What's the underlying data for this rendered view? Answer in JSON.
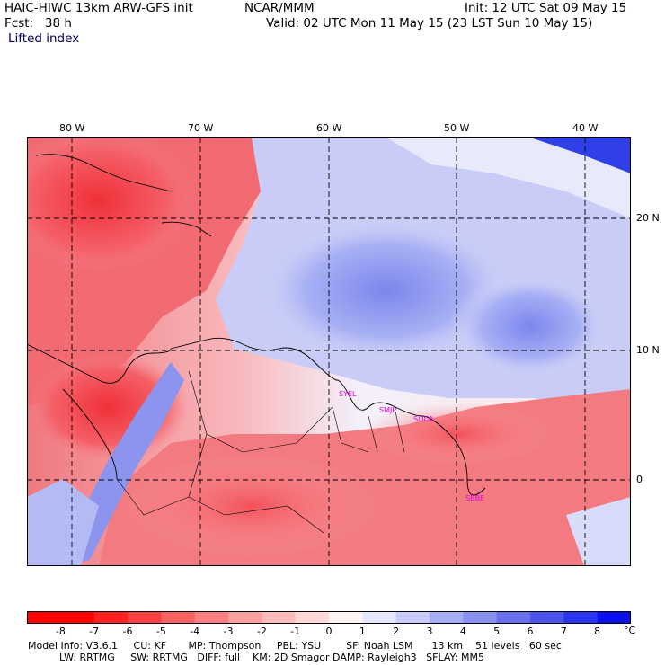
{
  "header": {
    "model": "HAIC-HIWC 13km ARW-GFS init",
    "org": "NCAR/MMM",
    "fcst": "Fcst:   38 h",
    "init": "Init: 12 UTC Sat 09 May 15",
    "valid": "Valid: 02 UTC Mon 11 May 15 (23 LST Sun 10 May 15)",
    "field": "Lifted index"
  },
  "map": {
    "lon_labels": [
      "80 W",
      "70 W",
      "60 W",
      "50 W",
      "40 W"
    ],
    "lat_labels": [
      "20 N",
      "10 N",
      "0"
    ],
    "stations": [
      "SYEL",
      "SMJP",
      "SOCA",
      "SBBE"
    ],
    "colors": {
      "unstable": "#e8202a",
      "stable": "#2030e0",
      "neutral": "#ffffff"
    }
  },
  "colorbar": {
    "ticks": [
      "-8",
      "-7",
      "-6",
      "-5",
      "-4",
      "-3",
      "-2",
      "-1",
      "0",
      "1",
      "2",
      "3",
      "4",
      "5",
      "6",
      "7",
      "8"
    ],
    "unit": "°C",
    "colors": [
      "#ff0000",
      "#ff2020",
      "#ff4040",
      "#ff6262",
      "#ff8080",
      "#ffa0a0",
      "#ffbcbc",
      "#ffd8d8",
      "#fff4f4",
      "#e6e8ff",
      "#c8ccff",
      "#a8aef5",
      "#8890f0",
      "#6870f0",
      "#4c54f0",
      "#2a34f0",
      "#0c10f0"
    ]
  },
  "footer": {
    "line1": "Model Info: V3.6.1     CU: KF       MP: Thompson     PBL: YSU        SF: Noah LSM      13 km    51 levels   60 sec",
    "line2": "          LW: RRTMG     SW: RRTMG   DIFF: full    KM: 2D Smagor DAMP: Rayleigh3   SFLAY: MM5"
  }
}
